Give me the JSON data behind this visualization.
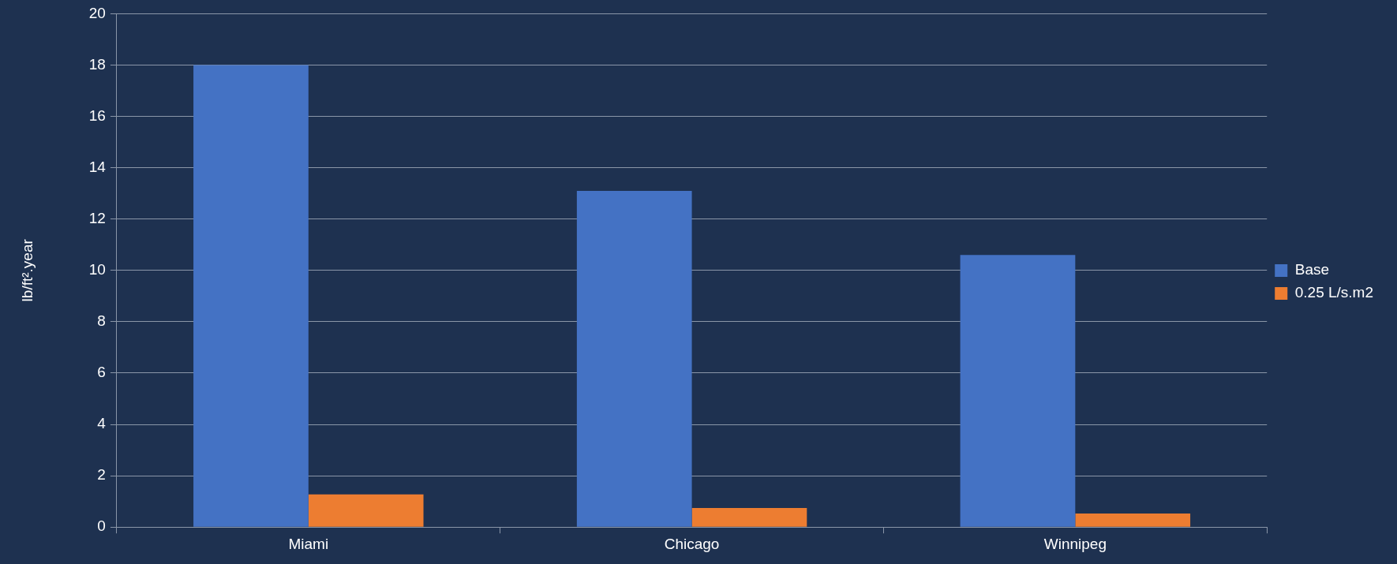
{
  "chart_data": {
    "type": "bar",
    "ylabel": "lb/ft².year",
    "categories": [
      "Miami",
      "Chicago",
      "Winnipeg"
    ],
    "series": [
      {
        "name": "Base",
        "color": "#4472c4",
        "values": [
          18.0,
          13.1,
          10.6
        ]
      },
      {
        "name": "0.25 L/s.m2",
        "color": "#ed7d31",
        "values": [
          1.27,
          0.74,
          0.53
        ]
      }
    ],
    "ylim": [
      0,
      20
    ],
    "yticks": [
      0,
      2,
      4,
      6,
      8,
      10,
      12,
      14,
      16,
      18,
      20
    ],
    "grid": "y",
    "legend": "right"
  }
}
